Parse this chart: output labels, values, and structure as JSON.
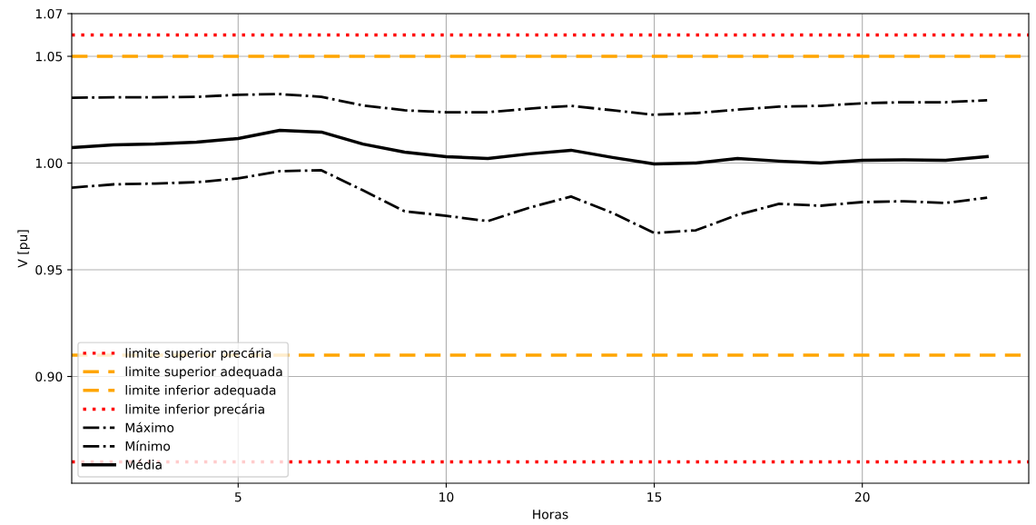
{
  "chart_data": {
    "type": "line",
    "xlabel": "Horas",
    "ylabel": "V [pu]",
    "x": [
      1,
      2,
      3,
      4,
      5,
      6,
      7,
      8,
      9,
      10,
      11,
      12,
      13,
      14,
      15,
      16,
      17,
      18,
      19,
      20,
      21,
      22,
      23
    ],
    "xlim": [
      1,
      24
    ],
    "xticks": [
      5,
      10,
      15,
      20
    ],
    "ylim": [
      0.85,
      1.07
    ],
    "yticks": [
      {
        "value": 0.9,
        "label": "0.90"
      },
      0.95,
      {
        "value": 1.0,
        "label": "1.00"
      },
      1.05,
      1.07
    ],
    "grid": true,
    "legend": "bottom left",
    "ref_lines": [
      {
        "axis": "y",
        "value": 1.06,
        "label": "limite superior precária",
        "color": "#ff0000",
        "line_style": "dotted"
      },
      {
        "axis": "y",
        "value": 1.05,
        "label": "limite superior adequada",
        "color": "#ffa500",
        "line_style": "dashed"
      },
      {
        "axis": "y",
        "value": 0.91,
        "label": "limite inferior adequada",
        "color": "#ffa500",
        "line_style": "dashed"
      },
      {
        "axis": "y",
        "value": 0.86,
        "label": "limite inferior precária",
        "color": "#ff0000",
        "line_style": "dotted"
      }
    ],
    "series": [
      {
        "name": "Máximo",
        "color": "#000000",
        "line_style": "dashdot",
        "values": [
          1.0306,
          1.0308,
          1.0308,
          1.031,
          1.032,
          1.0323,
          1.031,
          1.027,
          1.0247,
          1.0238,
          1.0238,
          1.0255,
          1.0268,
          1.0247,
          1.0226,
          1.0234,
          1.025,
          1.0264,
          1.0268,
          1.028,
          1.0285,
          1.0285,
          1.0294
        ]
      },
      {
        "name": "Mínimo",
        "color": "#000000",
        "line_style": "dashdot",
        "values": [
          0.9885,
          0.99,
          0.9904,
          0.991,
          0.9928,
          0.9962,
          0.9966,
          0.9872,
          0.9774,
          0.9753,
          0.9728,
          0.9791,
          0.9843,
          0.9766,
          0.9672,
          0.9685,
          0.9757,
          0.9809,
          0.98,
          0.9817,
          0.9821,
          0.9813,
          0.9838
        ]
      },
      {
        "name": "Média",
        "color": "#000000",
        "line_style": "solid",
        "values": [
          1.0072,
          1.0085,
          1.0089,
          1.0098,
          1.0115,
          1.0153,
          1.0145,
          1.0089,
          1.0051,
          1.003,
          1.0021,
          1.0043,
          1.006,
          1.0026,
          0.9996,
          1.0,
          1.0021,
          1.0009,
          1.0,
          1.0013,
          1.0015,
          1.0013,
          1.003
        ]
      }
    ]
  }
}
